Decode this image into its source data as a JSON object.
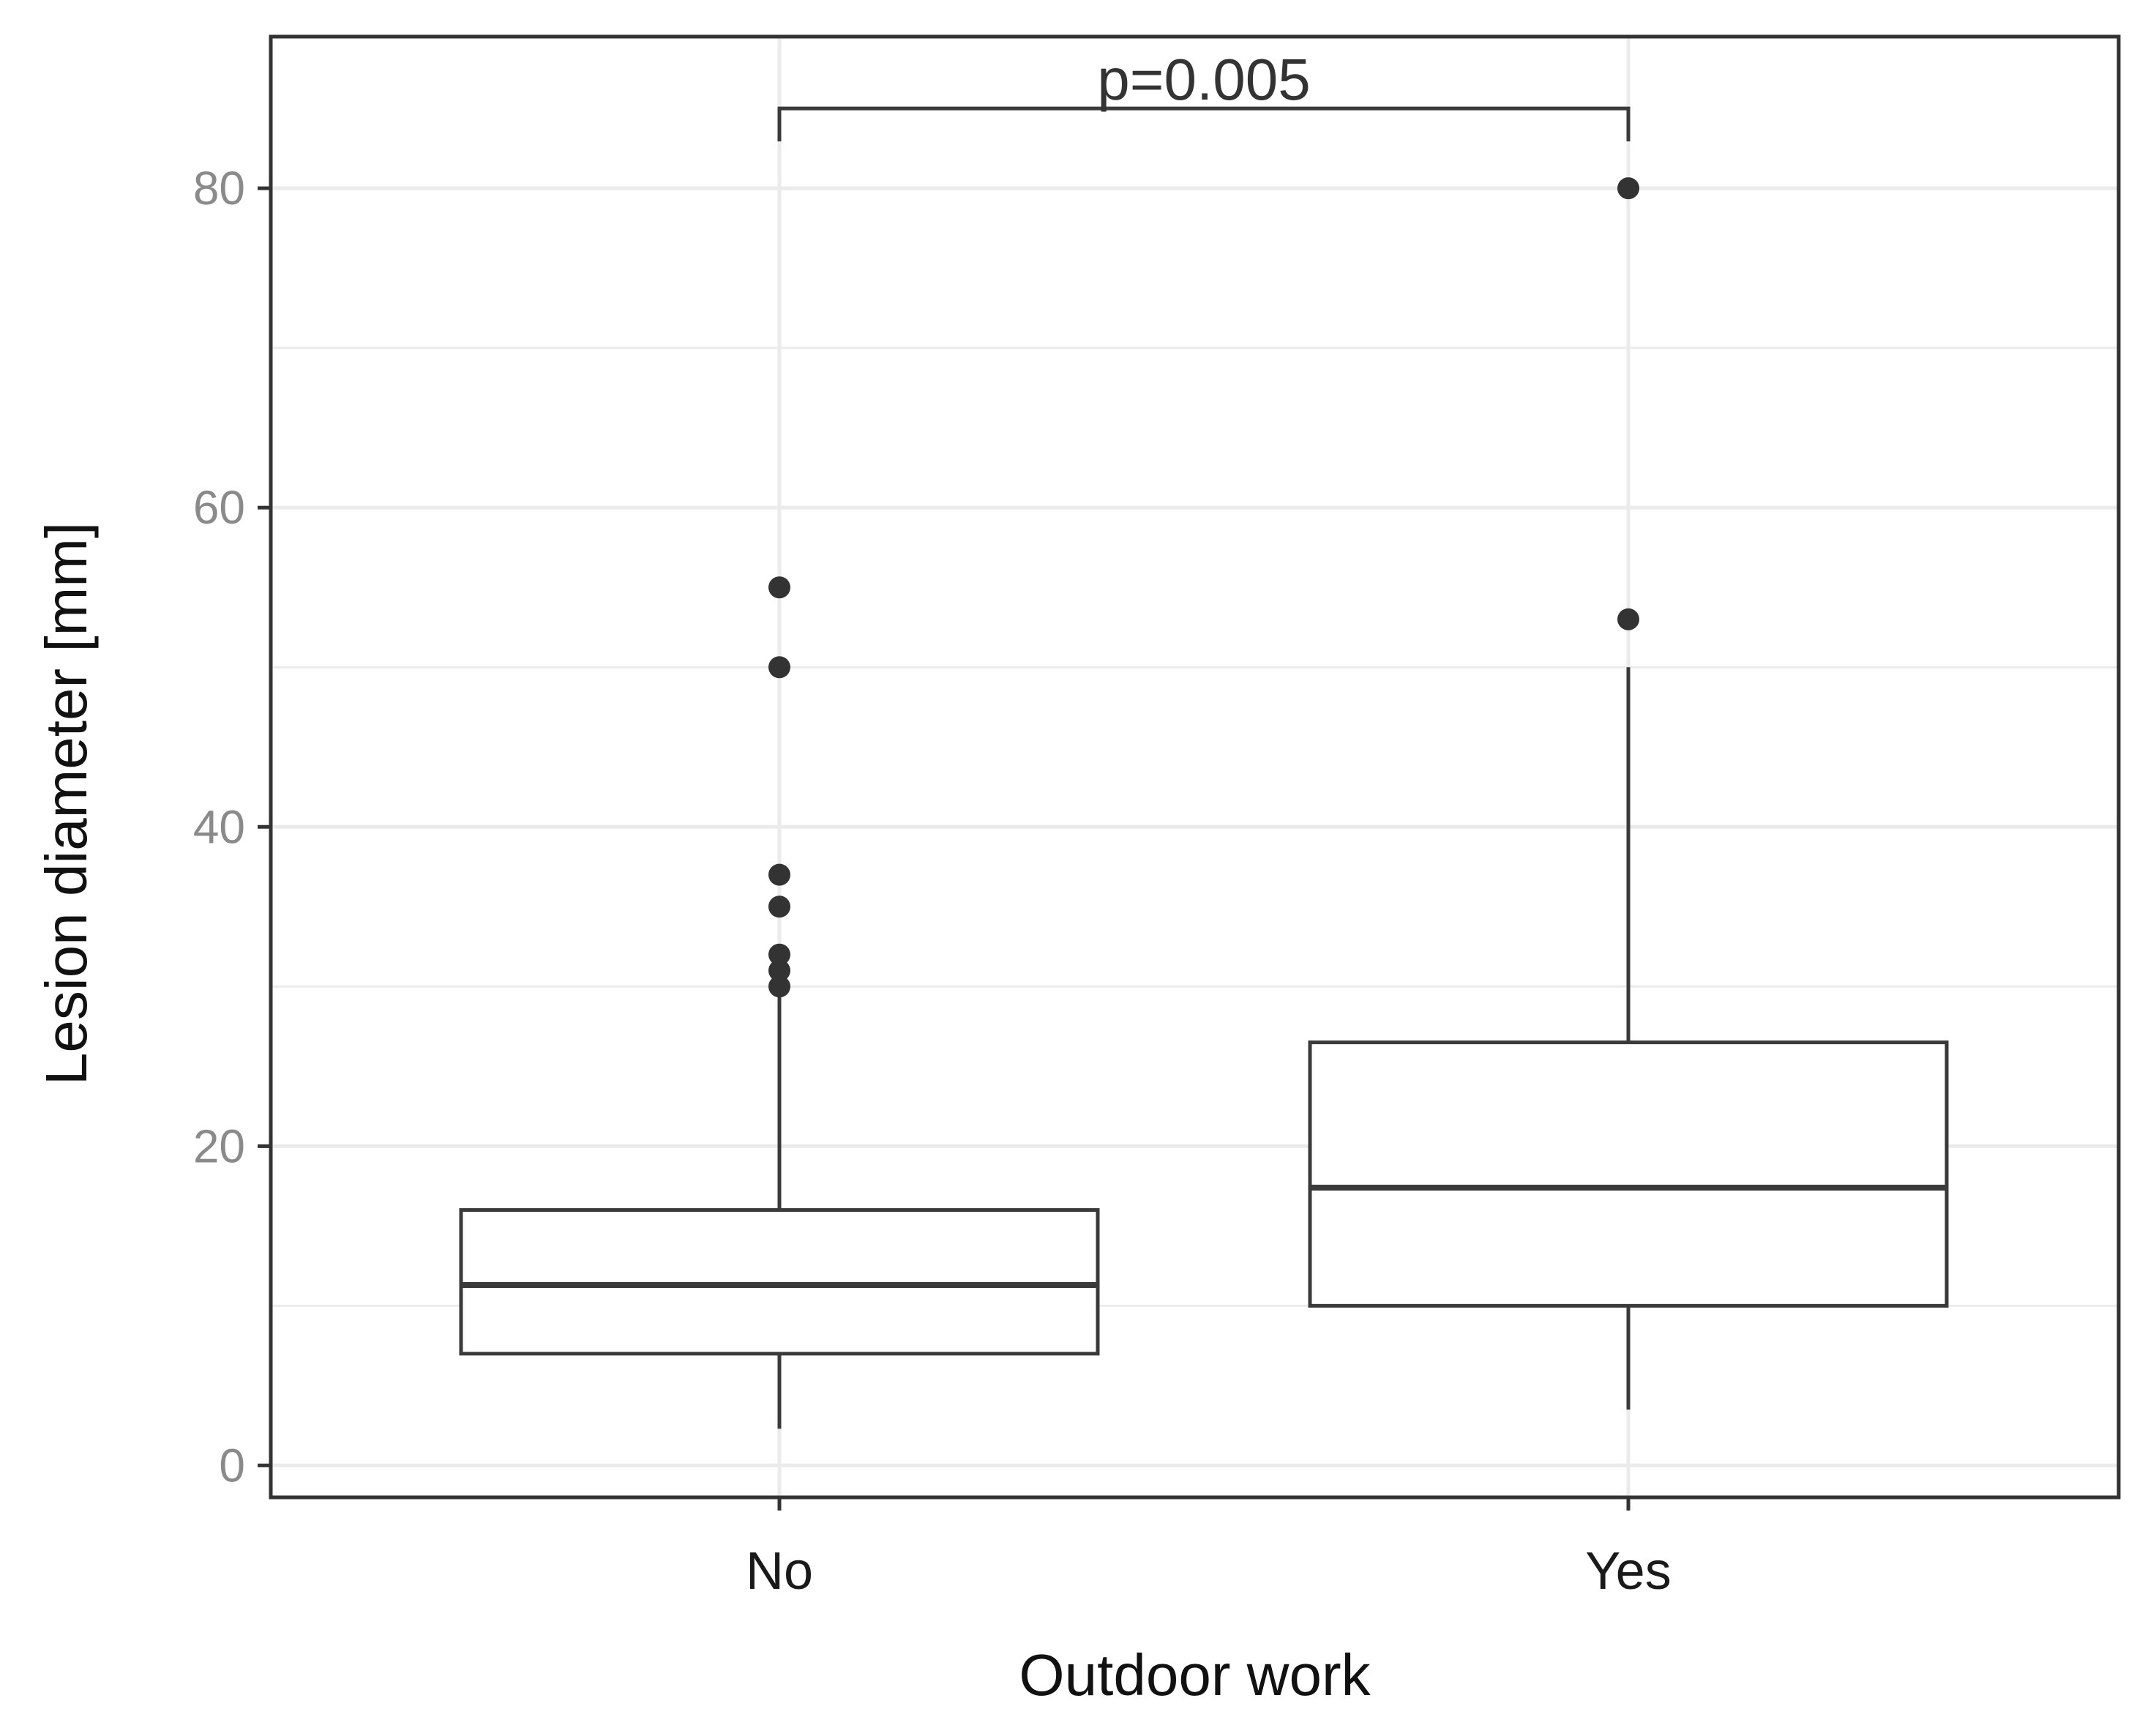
{
  "chart_data": {
    "type": "box",
    "xlabel": "Outdoor work",
    "ylabel": "Lesion diameter [mm]",
    "ylim": [
      -2,
      89.5
    ],
    "yticks": [
      0,
      20,
      40,
      60,
      80
    ],
    "grid": true,
    "categories": [
      "No",
      "Yes"
    ],
    "boxes": [
      {
        "category": "No",
        "whisker_low": 2.3,
        "q1": 7.0,
        "median": 11.3,
        "q3": 16.0,
        "whisker_high": 29.7,
        "outliers": [
          30.0,
          31.0,
          32.0,
          35.0,
          37.0,
          50.0,
          55.0
        ]
      },
      {
        "category": "Yes",
        "whisker_low": 3.5,
        "q1": 10.0,
        "median": 17.4,
        "q3": 26.5,
        "whisker_high": 50.0,
        "outliers": [
          53.0,
          80.0
        ]
      }
    ],
    "annotation": {
      "text": "p=0.005",
      "from": "No",
      "to": "Yes",
      "y": 85
    }
  },
  "colors": {
    "frame": "#333333",
    "grid": "#ebebeb",
    "box_stroke": "#3a3a3a",
    "point": "#333333"
  }
}
